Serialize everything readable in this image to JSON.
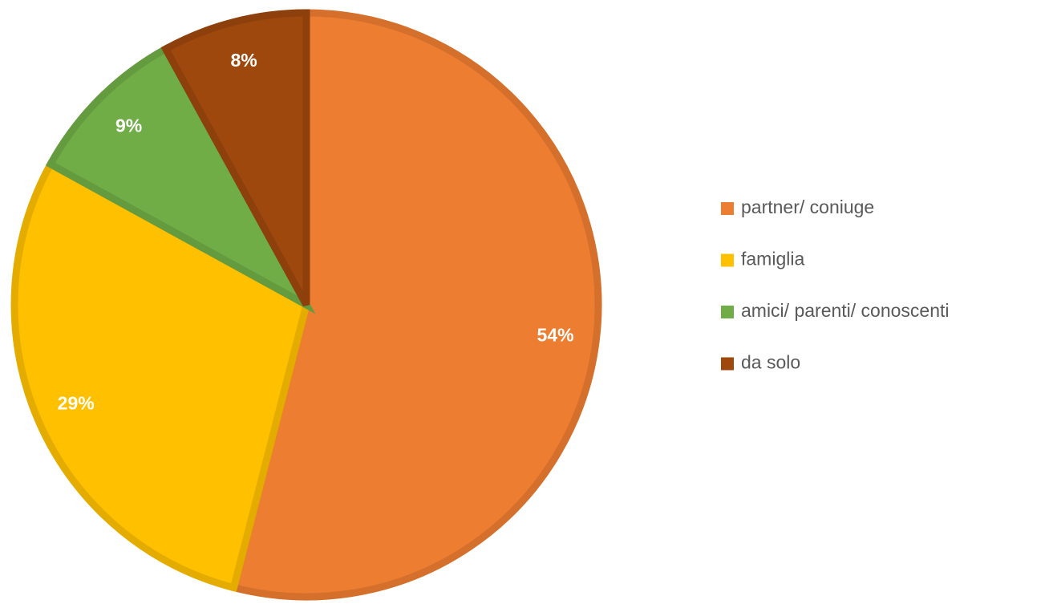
{
  "chart_data": {
    "type": "pie",
    "categories": [
      "partner/ coniuge",
      "famiglia",
      "amici/ parenti/ conoscenti",
      "da solo"
    ],
    "values": [
      54,
      29,
      9,
      8
    ],
    "value_labels": [
      "54%",
      "29%",
      "9%",
      "8%"
    ],
    "colors": [
      "#ED7D31",
      "#FFC000",
      "#70AD47",
      "#9E480E"
    ],
    "legend": "right"
  }
}
